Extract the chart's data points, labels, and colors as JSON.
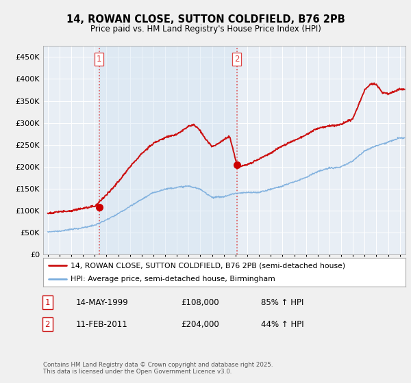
{
  "title": "14, ROWAN CLOSE, SUTTON COLDFIELD, B76 2PB",
  "subtitle": "Price paid vs. HM Land Registry's House Price Index (HPI)",
  "ylim": [
    0,
    475000
  ],
  "yticks": [
    0,
    50000,
    100000,
    150000,
    200000,
    250000,
    300000,
    350000,
    400000,
    450000
  ],
  "xlim_start": 1994.6,
  "xlim_end": 2025.5,
  "bg_color": "#f0f0f0",
  "plot_bg_color": "#e8eef5",
  "grid_color": "#ffffff",
  "sale1_t": 1999.37,
  "sale1_p": 108000,
  "sale2_t": 2011.11,
  "sale2_p": 204000,
  "vline_color": "#dd4444",
  "sale_dot_color": "#cc0000",
  "hpi_line_color": "#7aaddd",
  "price_line_color": "#cc1111",
  "legend_entry1": "14, ROWAN CLOSE, SUTTON COLDFIELD, B76 2PB (semi-detached house)",
  "legend_entry2": "HPI: Average price, semi-detached house, Birmingham",
  "annotation1_date": "14-MAY-1999",
  "annotation1_price": "£108,000",
  "annotation1_hpi": "85% ↑ HPI",
  "annotation2_date": "11-FEB-2011",
  "annotation2_price": "£204,000",
  "annotation2_hpi": "44% ↑ HPI",
  "footer": "Contains HM Land Registry data © Crown copyright and database right 2025.\nThis data is licensed under the Open Government Licence v3.0.",
  "xtick_years": [
    1995,
    1996,
    1997,
    1998,
    1999,
    2000,
    2001,
    2002,
    2003,
    2004,
    2005,
    2006,
    2007,
    2008,
    2009,
    2010,
    2011,
    2012,
    2013,
    2014,
    2015,
    2016,
    2017,
    2018,
    2019,
    2020,
    2021,
    2022,
    2023,
    2024,
    2025
  ]
}
